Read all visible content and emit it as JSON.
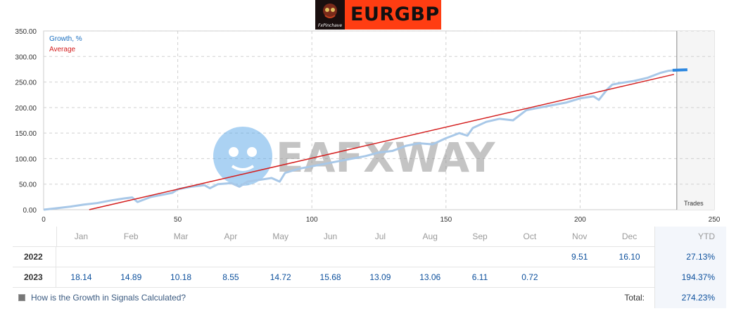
{
  "logo": {
    "title": "EURGBP",
    "caption": "FxPinchave"
  },
  "watermark": {
    "text": "EAFXWAY"
  },
  "legend": {
    "growth": "Growth, %",
    "average": "Average"
  },
  "trades_label": "Trades",
  "colors": {
    "growth": "#a8c8e8",
    "growth_end": "#2a86e0",
    "average": "#d42020",
    "grid": "#d0d0d0",
    "link": "#3a5a80",
    "value": "#0b4f9c"
  },
  "chart_data": {
    "type": "line",
    "x_axis": {
      "min": 0,
      "max": 250,
      "ticks": [
        "0",
        "50",
        "100",
        "150",
        "200",
        "250"
      ]
    },
    "y_axis": {
      "min": 0,
      "max": 350,
      "ticks": [
        "0.00",
        "50.00",
        "100.00",
        "150.00",
        "200.00",
        "250.00",
        "300.00",
        "350.00"
      ]
    },
    "grid": true,
    "legend_position": "top-left",
    "trades_marker_x": 235,
    "series": [
      {
        "name": "Growth, %",
        "points": [
          [
            0,
            0
          ],
          [
            5,
            3
          ],
          [
            10,
            6
          ],
          [
            15,
            10
          ],
          [
            20,
            13
          ],
          [
            25,
            18
          ],
          [
            30,
            22
          ],
          [
            33,
            24
          ],
          [
            35,
            15
          ],
          [
            40,
            25
          ],
          [
            45,
            30
          ],
          [
            48,
            33
          ],
          [
            50,
            40
          ],
          [
            55,
            45
          ],
          [
            60,
            48
          ],
          [
            62,
            42
          ],
          [
            65,
            50
          ],
          [
            70,
            52
          ],
          [
            73,
            45
          ],
          [
            76,
            55
          ],
          [
            80,
            58
          ],
          [
            85,
            62
          ],
          [
            88,
            55
          ],
          [
            90,
            72
          ],
          [
            95,
            80
          ],
          [
            100,
            85
          ],
          [
            105,
            90
          ],
          [
            110,
            95
          ],
          [
            115,
            100
          ],
          [
            120,
            105
          ],
          [
            125,
            112
          ],
          [
            130,
            115
          ],
          [
            135,
            125
          ],
          [
            140,
            130
          ],
          [
            145,
            128
          ],
          [
            150,
            140
          ],
          [
            155,
            150
          ],
          [
            158,
            145
          ],
          [
            160,
            160
          ],
          [
            165,
            172
          ],
          [
            170,
            178
          ],
          [
            175,
            175
          ],
          [
            180,
            195
          ],
          [
            185,
            200
          ],
          [
            190,
            205
          ],
          [
            195,
            210
          ],
          [
            200,
            218
          ],
          [
            205,
            222
          ],
          [
            207,
            215
          ],
          [
            210,
            235
          ],
          [
            212,
            245
          ],
          [
            215,
            248
          ],
          [
            220,
            252
          ],
          [
            225,
            258
          ],
          [
            230,
            268
          ],
          [
            233,
            272
          ],
          [
            235,
            273
          ]
        ]
      },
      {
        "name": "Average",
        "points": [
          [
            17,
            0
          ],
          [
            235,
            265
          ]
        ]
      }
    ]
  },
  "table": {
    "months": [
      "Jan",
      "Feb",
      "Mar",
      "Apr",
      "May",
      "Jun",
      "Jul",
      "Aug",
      "Sep",
      "Oct",
      "Nov",
      "Dec"
    ],
    "ytd_label": "YTD",
    "rows": [
      {
        "year": "2022",
        "values": [
          "",
          "",
          "",
          "",
          "",
          "",
          "",
          "",
          "",
          "",
          "9.51",
          "16.10"
        ],
        "ytd": "27.13%"
      },
      {
        "year": "2023",
        "values": [
          "18.14",
          "14.89",
          "10.18",
          "8.55",
          "14.72",
          "15.68",
          "13.09",
          "13.06",
          "6.11",
          "0.72",
          "",
          ""
        ],
        "ytd": "194.37%"
      }
    ],
    "footer_link": "How is the Growth in Signals Calculated?",
    "total_label": "Total:",
    "total_value": "274.23%"
  }
}
